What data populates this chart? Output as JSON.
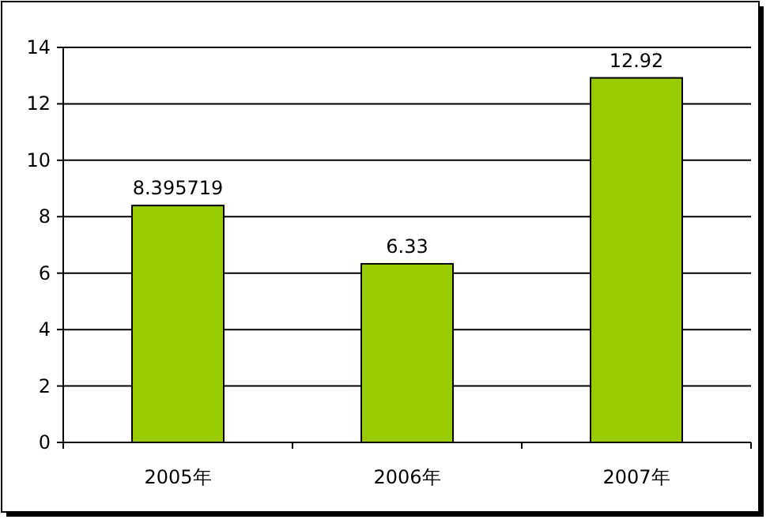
{
  "chart_data": {
    "type": "bar",
    "categories": [
      "2005年",
      "2006年",
      "2007年"
    ],
    "values": [
      8.395719,
      6.33,
      12.92
    ],
    "color": "#99cc00",
    "ylim": [
      0,
      14
    ],
    "yticks": [
      0,
      2,
      4,
      6,
      8,
      10,
      12,
      14
    ],
    "grid": "y",
    "data_labels": true
  }
}
